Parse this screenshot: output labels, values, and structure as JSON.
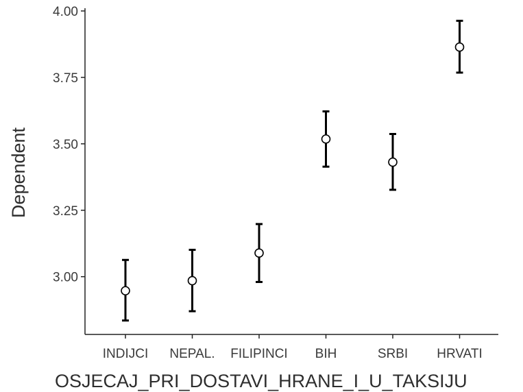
{
  "chart_data": {
    "type": "errorbar",
    "xlabel": "OSJECAJ_PRI_DOSTAVI_HRANE_I_U_TAKSIJU",
    "ylabel": "Dependent",
    "categories": [
      "INDIJCI",
      "NEPAL.",
      "FILIPINCI",
      "BIH",
      "SRBI",
      "HRVATI"
    ],
    "means": [
      2.947,
      2.985,
      3.089,
      3.518,
      3.431,
      3.864
    ],
    "lower": [
      2.835,
      2.87,
      2.98,
      3.414,
      3.327,
      3.768
    ],
    "upper": [
      3.063,
      3.101,
      3.198,
      3.622,
      3.537,
      3.963
    ],
    "yticks": [
      "3.00",
      "3.25",
      "3.50",
      "3.75",
      "4.00"
    ],
    "ylim": [
      2.78,
      4.0
    ],
    "grid": false,
    "legend": "none"
  }
}
